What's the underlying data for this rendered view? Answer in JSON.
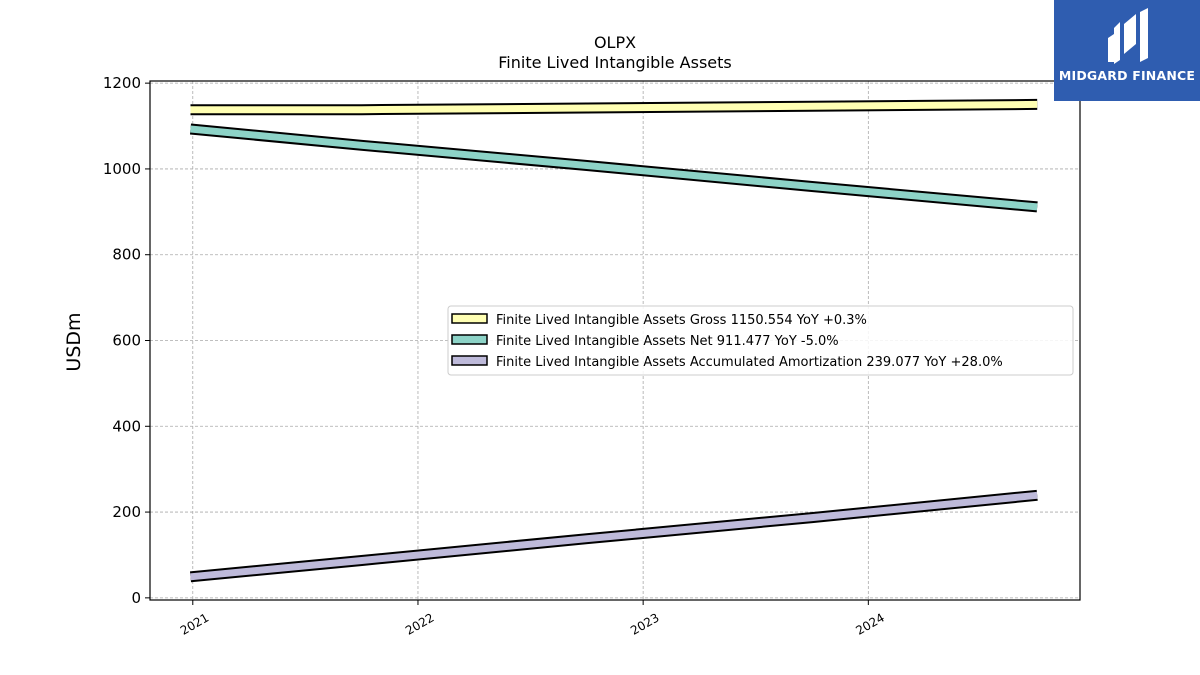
{
  "brand": {
    "name": "MIDGARD FINANCE",
    "color": "#2f5db0"
  },
  "chart_data": {
    "type": "line",
    "title": "OLPX",
    "subtitle": "Finite Lived Intangible Assets",
    "xlabel": "",
    "ylabel": "USDm",
    "xlim": [
      2020.81,
      2024.94
    ],
    "ylim": [
      -5,
      1205
    ],
    "x_ticks": [
      2021,
      2022,
      2023,
      2024
    ],
    "x_tick_labels": [
      "2021",
      "2022",
      "2023",
      "2024"
    ],
    "y_ticks": [
      0,
      200,
      400,
      600,
      800,
      1000,
      1200
    ],
    "y_tick_labels": [
      "0",
      "200",
      "400",
      "600",
      "800",
      "1000",
      "1200"
    ],
    "grid": true,
    "legend_position": "center-right",
    "series": [
      {
        "name": "Finite Lived Intangible Assets Gross",
        "legend": "Finite Lived Intangible Assets Gross  1150.554 YoY +0.3%",
        "color": "#ffffb3",
        "x": [
          2020.99,
          2021.75,
          2022.75,
          2023.75,
          2024.75
        ],
        "y": [
          1138,
          1138,
          1142,
          1146,
          1150.554
        ]
      },
      {
        "name": "Finite Lived Intangible Assets Net",
        "legend": "Finite Lived Intangible Assets Net  911.477 YoY -5.0%",
        "color": "#8dd3c7",
        "x": [
          2020.99,
          2021.75,
          2022.75,
          2023.75,
          2024.75
        ],
        "y": [
          1093,
          1055,
          1008,
          959,
          911.477
        ]
      },
      {
        "name": "Finite Lived Intangible Assets Accumulated Amortization",
        "legend": "Finite Lived Intangible Assets Accumulated Amortization  239.077 YoY +28.0%",
        "color": "#bebada",
        "x": [
          2020.99,
          2021.75,
          2022.75,
          2023.75,
          2024.75
        ],
        "y": [
          49,
          87,
          138,
          187,
          239.077
        ]
      }
    ]
  }
}
